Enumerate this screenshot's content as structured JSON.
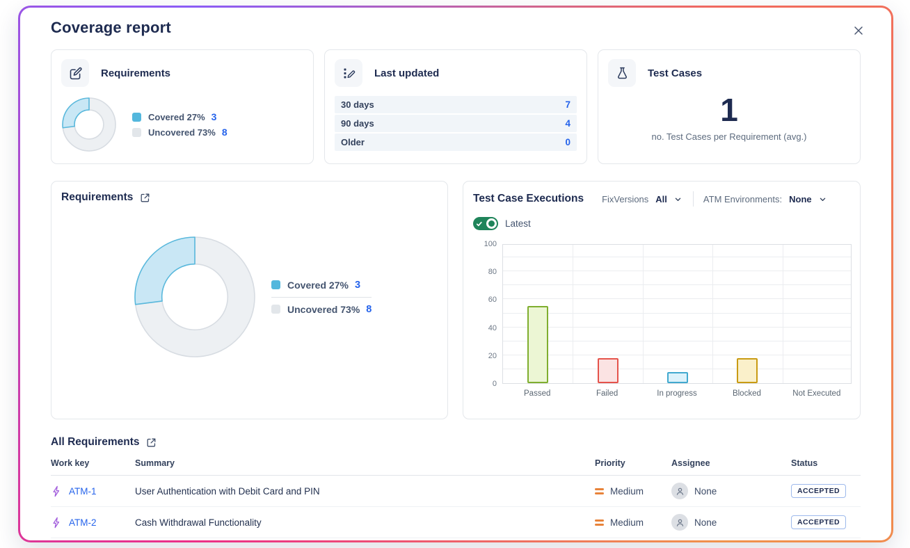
{
  "dialog": {
    "title": "Coverage report"
  },
  "cards": {
    "requirements": {
      "title": "Requirements",
      "legend": [
        {
          "label": "Covered 27%",
          "count": "3"
        },
        {
          "label": "Uncovered 73%",
          "count": "8"
        }
      ]
    },
    "last_updated": {
      "title": "Last updated",
      "rows": [
        {
          "label": "30 days",
          "value": "7"
        },
        {
          "label": "90 days",
          "value": "4"
        },
        {
          "label": "Older",
          "value": "0"
        }
      ]
    },
    "test_cases": {
      "title": "Test Cases",
      "value": "1",
      "caption": "no. Test Cases per Requirement (avg.)"
    }
  },
  "requirements_panel": {
    "title": "Requirements",
    "legend": [
      {
        "label": "Covered 27%",
        "count": "3"
      },
      {
        "label": "Uncovered 73%",
        "count": "8"
      }
    ]
  },
  "executions_panel": {
    "title": "Test Case Executions",
    "fixversions_label": "FixVersions",
    "fixversions_value": "All",
    "environments_label": "ATM Environments:",
    "environments_value": "None",
    "toggle_label": "Latest",
    "toggle_on": true
  },
  "table": {
    "title": "All Requirements",
    "columns": [
      "Work key",
      "Summary",
      "Priority",
      "Assignee",
      "Status"
    ],
    "rows": [
      {
        "key": "ATM-1",
        "summary": "User Authentication with Debit Card and PIN",
        "priority": "Medium",
        "assignee": "None",
        "status": "ACCEPTED"
      },
      {
        "key": "ATM-2",
        "summary": "Cash Withdrawal Functionality",
        "priority": "Medium",
        "assignee": "None",
        "status": "ACCEPTED"
      }
    ]
  },
  "colors": {
    "accent_blue": "#2563eb",
    "navy": "#1e2b50",
    "toggle_green": "#1f845a",
    "covered_swatch": "#53b7dd",
    "uncovered_swatch": "#e2e6ea",
    "border_gradient": [
      "#8b5cf6",
      "#f1695e",
      "#f0924c",
      "#ec2f87"
    ]
  },
  "chart_data": [
    {
      "type": "pie",
      "title": "Requirements coverage donut",
      "labels": [
        "Covered",
        "Uncovered"
      ],
      "values": [
        27,
        73
      ],
      "counts": [
        3,
        8
      ],
      "legend_position": "right",
      "slice_styles": [
        {
          "fill": "#c9e7f5",
          "stroke": "#59b8dc"
        },
        {
          "fill": "#edf0f3",
          "stroke": "#d7dce2"
        }
      ]
    },
    {
      "type": "bar",
      "title": "Test Case Executions",
      "categories": [
        "Passed",
        "Failed",
        "In progress",
        "Blocked",
        "Not Executed"
      ],
      "values": [
        55,
        18,
        8,
        18,
        0
      ],
      "xlabel": "",
      "ylabel": "",
      "ylim": [
        0,
        100
      ],
      "yticks": [
        0,
        20,
        40,
        60,
        80,
        100
      ],
      "grid_step": 10,
      "grid": true,
      "legend_position": "none",
      "bar_styles": [
        {
          "fill": "#ecf6d4",
          "stroke": "#7fae2f"
        },
        {
          "fill": "#fbe3e3",
          "stroke": "#e5534b"
        },
        {
          "fill": "#dcf2fb",
          "stroke": "#41a9cf"
        },
        {
          "fill": "#faf0ca",
          "stroke": "#c99b13"
        },
        {
          "fill": "none",
          "stroke": "none"
        }
      ]
    }
  ]
}
